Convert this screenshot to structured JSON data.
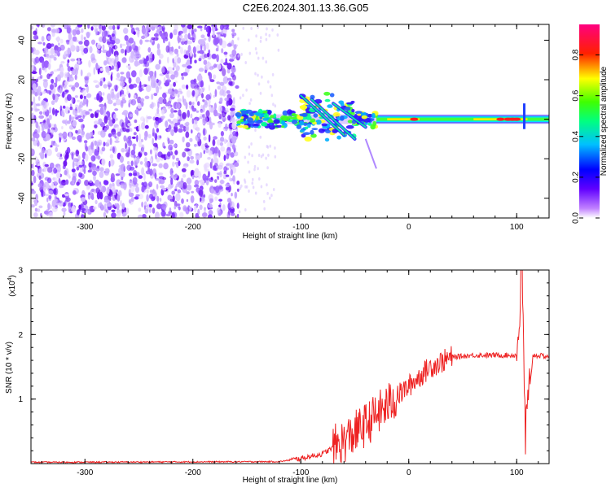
{
  "title": "C2E6.2024.301.13.36.G05",
  "chart_data": [
    {
      "type": "heatmap",
      "xlabel": "Height of straight line (km)",
      "ylabel": "Frequency (Hz)",
      "xlim": [
        -350,
        130
      ],
      "ylim": [
        -50,
        48
      ],
      "x_ticks": [
        -300,
        -200,
        -100,
        0,
        100
      ],
      "y_ticks": [
        -40,
        -20,
        0,
        20,
        40
      ],
      "colorbar": {
        "label": "Normalized spectral amplitude",
        "range": [
          0,
          0.95
        ],
        "ticks": [
          "0.0",
          "0.2",
          "0.4",
          "0.6",
          "0.8"
        ],
        "colors": [
          "#ffffff",
          "#7a00ff",
          "#0000ff",
          "#00ffff",
          "#00ff00",
          "#ffff00",
          "#ff0000",
          "#ff00ff"
        ]
      },
      "regions": [
        {
          "name": "noise",
          "x_range": [
            -350,
            -158
          ],
          "freq_range": [
            -50,
            48
          ],
          "amplitude": 0.05
        },
        {
          "name": "signal",
          "x_range": [
            -158,
            130
          ],
          "center_freq": 0,
          "amplitude_peak": 0.9
        }
      ]
    },
    {
      "type": "line",
      "xlabel": "Height of straight line (km)",
      "ylabel": "SNR (10 * v/v)",
      "y_multiplier": "(x10",
      "y_multiplier_exp": "4",
      "xlim": [
        -350,
        130
      ],
      "ylim": [
        0,
        3
      ],
      "x_ticks": [
        -300,
        -200,
        -100,
        0,
        100
      ],
      "y_ticks": [
        1,
        2,
        3
      ],
      "series_color": "#ee2222",
      "key_points": [
        {
          "x": -350,
          "y": 0.02
        },
        {
          "x": -120,
          "y": 0.03
        },
        {
          "x": -100,
          "y": 0.08
        },
        {
          "x": -80,
          "y": 0.15
        },
        {
          "x": -60,
          "y": 0.35
        },
        {
          "x": -40,
          "y": 0.6
        },
        {
          "x": -20,
          "y": 0.9
        },
        {
          "x": 0,
          "y": 1.2
        },
        {
          "x": 20,
          "y": 1.5
        },
        {
          "x": 40,
          "y": 1.65
        },
        {
          "x": 60,
          "y": 1.68
        },
        {
          "x": 100,
          "y": 1.68
        },
        {
          "x": 105,
          "y": 3.0
        },
        {
          "x": 108,
          "y": 0.4
        },
        {
          "x": 115,
          "y": 1.68
        },
        {
          "x": 130,
          "y": 1.66
        }
      ]
    }
  ]
}
